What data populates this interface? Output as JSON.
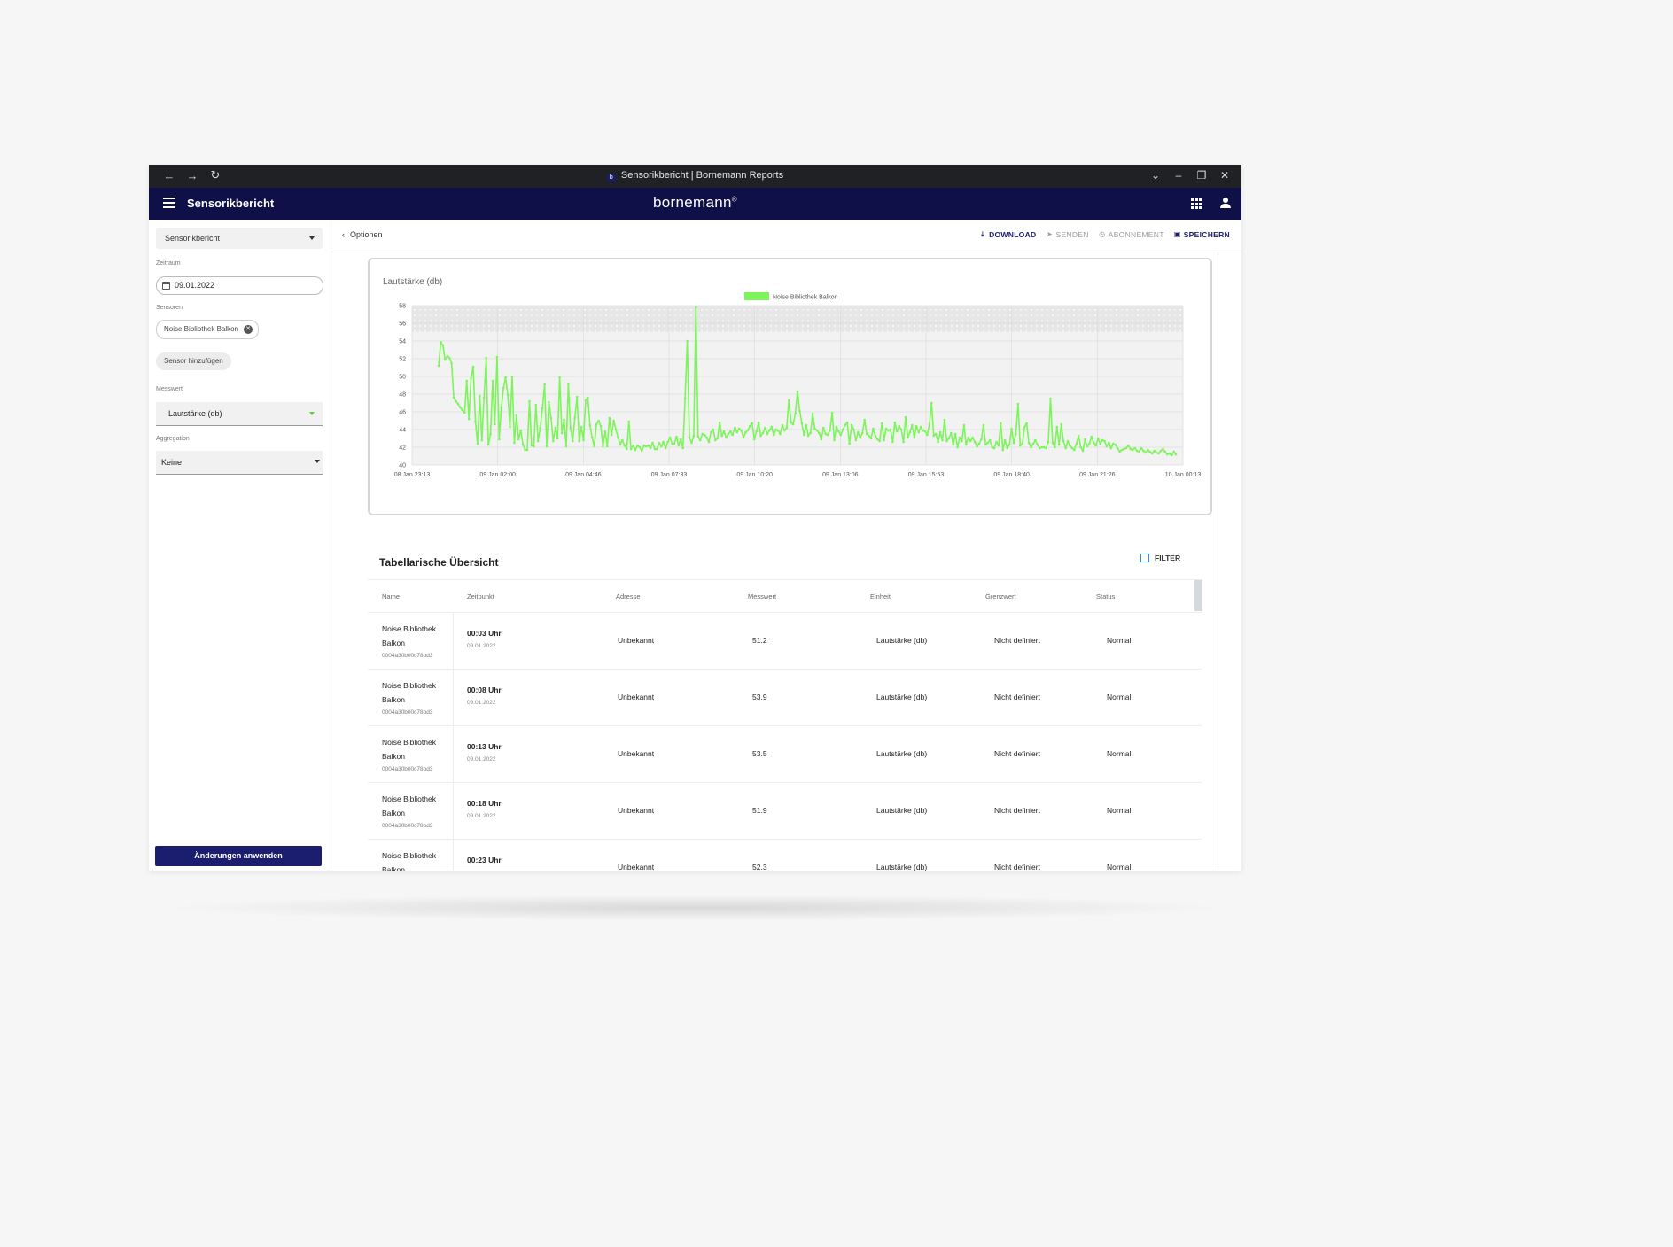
{
  "window": {
    "tab_title": "Sensorikbericht | Bornemann Reports",
    "favicon_letter": "b"
  },
  "appbar": {
    "title": "Sensorikbericht",
    "logo": "bornemann",
    "logo_mark": "®"
  },
  "sidebar": {
    "report_select": "Sensorikbericht",
    "timeframe_label": "Zeitraum",
    "date_value": "09.01.2022",
    "sensors_label": "Sensoren",
    "sensor_chip": "Noise Bibliothek Balkon",
    "add_sensor": "Sensor hinzufügen",
    "measure_label": "Messwert",
    "measure_value": "Lautstärke (db)",
    "aggregation_label": "Aggregation",
    "aggregation_value": "Keine",
    "apply_button": "Änderungen anwenden"
  },
  "toolbar": {
    "back_label": "Optionen",
    "download": "DOWNLOAD",
    "send": "SENDEN",
    "subscription": "ABONNEMENT",
    "save": "SPEICHERN"
  },
  "colors": {
    "appbar": "#0f1048",
    "accent": "#1b1d6e",
    "series": "#7cf55a"
  },
  "chart_data": {
    "type": "line",
    "title": "Lautstärke (db)",
    "ylim": [
      40,
      58
    ],
    "yticks": [
      40,
      42,
      44,
      46,
      48,
      50,
      52,
      54,
      56,
      58
    ],
    "x_tick_labels": [
      "08 Jan 23:13",
      "09 Jan 02:00",
      "09 Jan 04:46",
      "09 Jan 07:33",
      "09 Jan 10:20",
      "09 Jan 13:06",
      "09 Jan 15:53",
      "09 Jan 18:40",
      "09 Jan 21:26",
      "10 Jan 00:13"
    ],
    "threshold_band": [
      55,
      58
    ],
    "grid": true,
    "legend": "top",
    "series": [
      {
        "name": "Noise Bibliothek Balkon",
        "values": [
          51.2,
          53.9,
          53.5,
          51.9,
          52.3,
          52.1,
          51.5,
          47.6,
          47.2,
          46.9,
          46.5,
          46.2,
          45.9,
          49.5,
          45.2,
          49.8,
          51.1,
          44.9,
          42.4,
          47.8,
          42.8,
          47.6,
          52.1,
          42.3,
          43.5,
          49.5,
          44.6,
          52.2,
          42.9,
          46.5,
          48.7,
          49.9,
          47.9,
          44.3,
          50.0,
          42.5,
          45.6,
          42.9,
          43.9,
          42.3,
          41.7,
          41.7,
          47.2,
          42.2,
          42.1,
          46.8,
          42.7,
          44.2,
          46.4,
          49.1,
          42.1,
          47.1,
          45.3,
          42.7,
          44.2,
          43.0,
          49.9,
          43.6,
          45.1,
          42.1,
          49.2,
          44.2,
          42.7,
          45.3,
          47.7,
          42.7,
          44.3,
          42.8,
          47.3,
          47.6,
          44.5,
          43.1,
          42.1,
          44.6,
          45.0,
          44.4,
          42.1,
          43.8,
          42.1,
          45.3,
          43.4,
          45.0,
          44.0,
          43.1,
          42.3,
          42.8,
          42.2,
          41.8,
          44.9,
          41.8,
          42.2,
          41.7,
          42.2,
          42.0,
          41.6,
          42.2,
          42.1,
          42.2,
          41.9,
          42.5,
          41.8,
          41.8,
          42.5,
          42.1,
          42.6,
          41.9,
          42.6,
          43.1,
          42.4,
          42.4,
          43.2,
          42.2,
          42.9,
          41.9,
          47.5,
          54.0,
          43.1,
          42.5,
          43.3,
          57.8,
          43.2,
          42.8,
          43.5,
          43.4,
          43.1,
          42.6,
          43.7,
          44.0,
          42.8,
          43.0,
          44.8,
          43.3,
          43.8,
          43.1,
          43.5,
          43.8,
          43.4,
          44.2,
          43.7,
          44.1,
          43.9,
          43.1,
          43.7,
          43.9,
          44.4,
          44.7,
          42.9,
          43.8,
          44.8,
          43.3,
          43.6,
          44.2,
          43.5,
          43.9,
          44.3,
          43.4,
          44.0,
          43.9,
          43.5,
          44.5,
          43.9,
          44.2,
          47.3,
          44.8,
          44.6,
          45.8,
          48.3,
          46.1,
          44.7,
          43.4,
          44.5,
          43.3,
          43.6,
          45.8,
          44.1,
          43.9,
          43.6,
          42.9,
          44.2,
          43.5,
          43.4,
          43.9,
          45.9,
          42.8,
          44.3,
          43.8,
          43.4,
          44.0,
          44.5,
          44.8,
          42.4,
          44.5,
          44.0,
          42.8,
          43.7,
          43.1,
          43.6,
          45.1,
          43.5,
          43.3,
          43.0,
          44.1,
          43.3,
          42.9,
          42.7,
          44.7,
          42.8,
          44.1,
          43.9,
          44.0,
          42.6,
          44.8,
          43.8,
          44.4,
          44.0,
          42.6,
          45.4,
          43.1,
          43.7,
          44.5,
          43.1,
          44.4,
          43.7,
          44.3,
          43.9,
          43.8,
          43.4,
          44.6,
          47.0,
          43.3,
          43.5,
          42.6,
          43.7,
          42.8,
          45.1,
          42.7,
          43.0,
          43.6,
          42.3,
          43.5,
          42.0,
          43.1,
          42.7,
          44.5,
          42.3,
          43.1,
          42.7,
          43.1,
          42.6,
          42.1,
          42.4,
          42.9,
          44.5,
          42.3,
          42.5,
          42.8,
          42.0,
          41.9,
          42.6,
          42.2,
          44.7,
          41.7,
          42.8,
          41.9,
          42.3,
          44.1,
          42.5,
          43.5,
          46.9,
          42.2,
          42.4,
          44.3,
          44.7,
          42.5,
          42.0,
          42.4,
          42.8,
          42.3,
          41.9,
          42.0,
          42.0,
          41.9,
          42.6,
          47.5,
          42.5,
          42.0,
          44.3,
          42.3,
          44.6,
          42.7,
          41.9,
          42.7,
          42.2,
          41.9,
          41.7,
          42.4,
          43.3,
          42.0,
          41.6,
          42.9,
          42.1,
          42.4,
          43.2,
          42.5,
          42.2,
          43.0,
          42.4,
          42.8,
          42.7,
          42.1,
          42.5,
          41.9,
          42.4,
          42.3,
          41.9,
          41.5,
          41.7,
          41.8,
          41.9,
          42.2,
          41.8,
          41.7,
          41.9,
          41.6,
          41.5,
          41.9,
          41.6,
          41.4,
          41.7,
          41.5,
          41.3,
          41.6,
          41.4,
          41.3,
          41.6,
          41.8,
          41.5,
          41.2,
          41.3,
          41.1,
          41.5,
          41.2
        ]
      }
    ]
  },
  "table": {
    "title": "Tabellarische Übersicht",
    "filter": "FILTER",
    "headers": {
      "name": "Name",
      "time": "Zeitpunkt",
      "address": "Adresse",
      "value": "Messwert",
      "unit": "Einheit",
      "limit": "Grenzwert",
      "status": "Status"
    },
    "rows": [
      {
        "name": "Noise Bibliothek Balkon",
        "id": "0004a30b00c78bd3",
        "time": "00:03 Uhr",
        "date": "09.01.2022",
        "address": "Unbekannt",
        "value": "51.2",
        "unit": "Lautstärke (db)",
        "limit": "Nicht definiert",
        "status": "Normal"
      },
      {
        "name": "Noise Bibliothek Balkon",
        "id": "0004a30b00c78bd3",
        "time": "00:08 Uhr",
        "date": "09.01.2022",
        "address": "Unbekannt",
        "value": "53.9",
        "unit": "Lautstärke (db)",
        "limit": "Nicht definiert",
        "status": "Normal"
      },
      {
        "name": "Noise Bibliothek Balkon",
        "id": "0004a30b00c78bd3",
        "time": "00:13 Uhr",
        "date": "09.01.2022",
        "address": "Unbekannt",
        "value": "53.5",
        "unit": "Lautstärke (db)",
        "limit": "Nicht definiert",
        "status": "Normal"
      },
      {
        "name": "Noise Bibliothek Balkon",
        "id": "0004a30b00c78bd3",
        "time": "00:18 Uhr",
        "date": "09.01.2022",
        "address": "Unbekannt",
        "value": "51.9",
        "unit": "Lautstärke (db)",
        "limit": "Nicht definiert",
        "status": "Normal"
      },
      {
        "name": "Noise Bibliothek Balkon",
        "id": "",
        "time": "00:23 Uhr",
        "date": "",
        "address": "Unbekannt",
        "value": "52.3",
        "unit": "Lautstärke (db)",
        "limit": "Nicht definiert",
        "status": "Normal"
      }
    ]
  }
}
